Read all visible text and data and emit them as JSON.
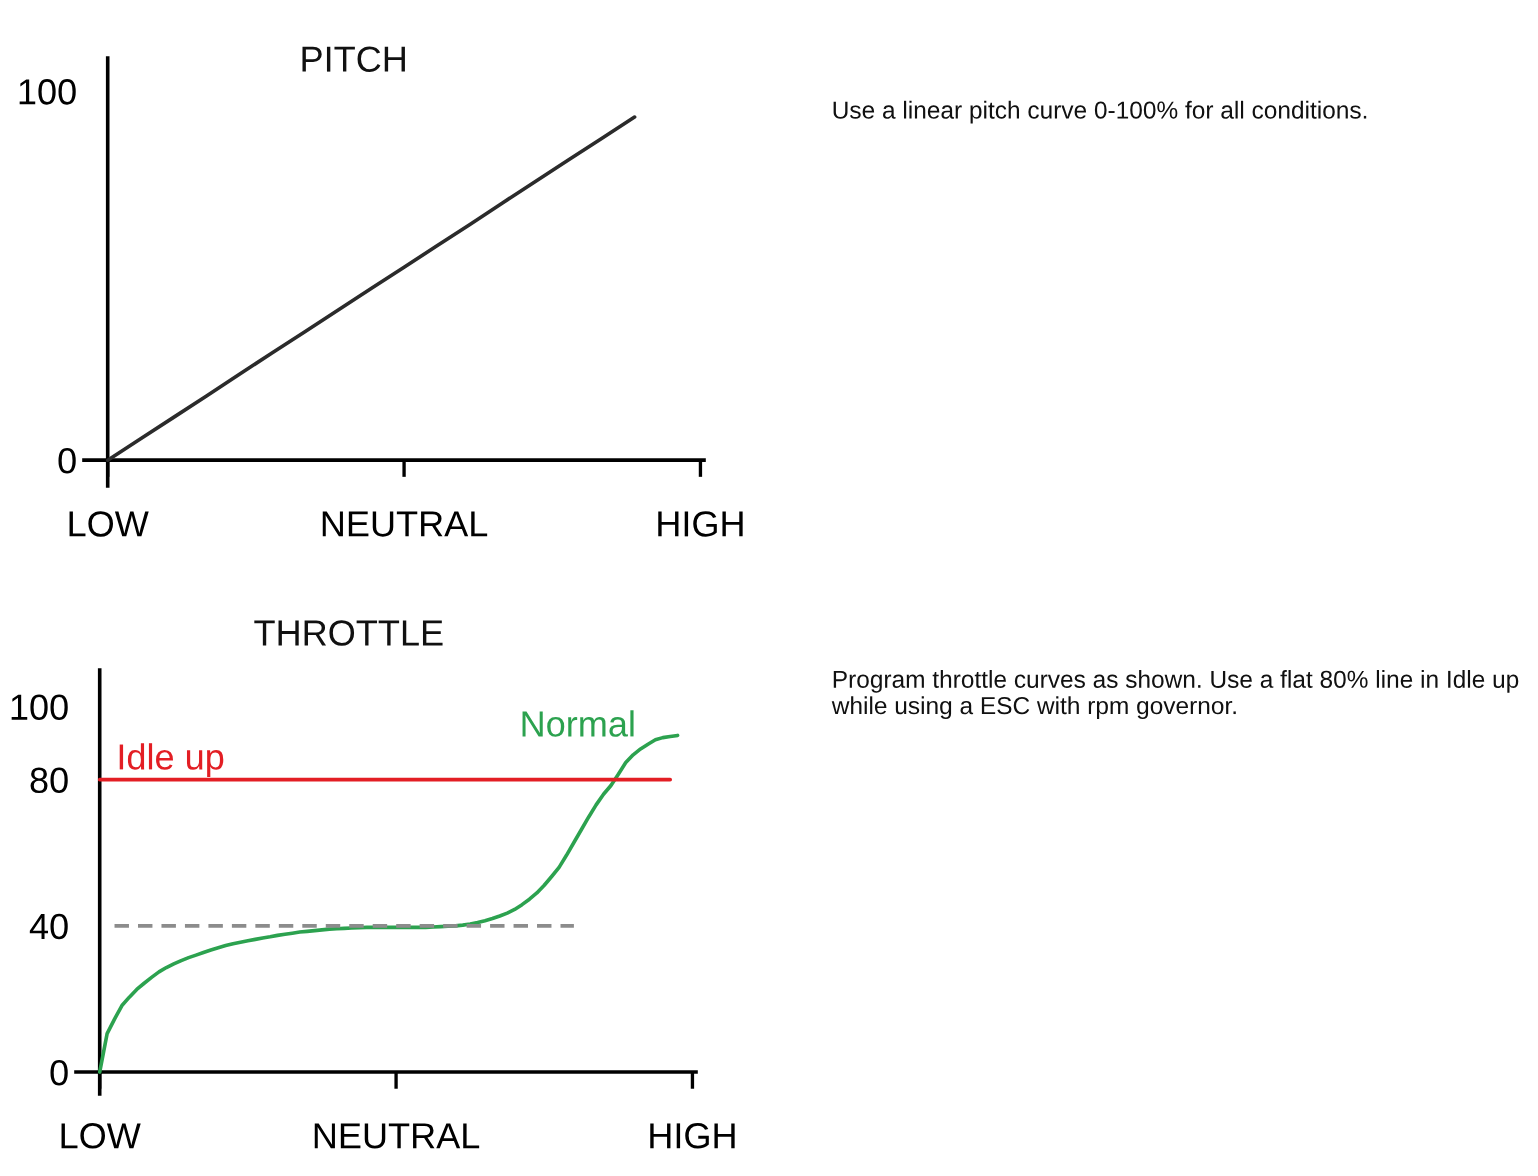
{
  "chart_data": [
    {
      "type": "line",
      "title": "PITCH",
      "categories": [
        "LOW",
        null,
        null,
        null,
        null,
        null,
        null,
        null,
        null,
        "NEUTRAL",
        null,
        null,
        null,
        null,
        null,
        null,
        null,
        null,
        "HIGH"
      ],
      "ylim": [
        -7,
        109
      ],
      "yticks": [
        0,
        100
      ],
      "series": [
        {
          "color": "#2b2b2b",
          "values": [
            0,
            5.8,
            11.6,
            17.4,
            23.3,
            29.1,
            34.9,
            40.7,
            46.5,
            52.3,
            58.1,
            63.9,
            69.8,
            75.6,
            81.4,
            87.2,
            93.0,
            null,
            null
          ]
        }
      ],
      "annotations": [
        "Use a linear pitch curve 0-100% for all conditions."
      ]
    },
    {
      "type": "line",
      "title": "THROTTLE",
      "categories": [
        "LOW",
        null,
        null,
        null,
        null,
        null,
        null,
        null,
        null,
        null,
        null,
        null,
        null,
        null,
        null,
        null,
        null,
        null,
        null,
        null,
        null,
        null,
        null,
        null,
        null,
        null,
        null,
        null,
        null,
        null,
        null,
        null,
        null,
        null,
        null,
        null,
        null,
        null,
        null,
        null,
        "NEUTRAL",
        null,
        null,
        null,
        null,
        null,
        null,
        null,
        null,
        null,
        null,
        null,
        null,
        null,
        null,
        null,
        null,
        null,
        null,
        null,
        null,
        null,
        null,
        null,
        null,
        null,
        null,
        null,
        null,
        null,
        null,
        null,
        null,
        null,
        null,
        null,
        null,
        null,
        null,
        null,
        "HIGH"
      ],
      "ylim": [
        -6,
        110
      ],
      "yticks": [
        0,
        40,
        80,
        100
      ],
      "series": [
        {
          "name": "Normal",
          "color": "#2ca24f",
          "values": [
            0,
            10.5,
            14.5,
            18.2,
            20.5,
            22.6,
            24.3,
            25.9,
            27.4,
            28.6,
            29.6,
            30.5,
            31.3,
            32.0,
            32.7,
            33.4,
            34.0,
            34.6,
            35.1,
            35.5,
            35.9,
            36.3,
            36.7,
            37.0,
            37.4,
            37.7,
            38.0,
            38.3,
            38.5,
            38.7,
            38.9,
            39.1,
            39.2,
            39.3,
            39.4,
            39.5,
            39.6,
            39.6,
            39.6,
            39.6,
            39.6,
            39.6,
            39.6,
            39.6,
            39.6,
            39.7,
            39.8,
            39.9,
            40.0,
            40.2,
            40.5,
            40.9,
            41.4,
            42.0,
            42.7,
            43.5,
            44.5,
            45.8,
            47.3,
            49.0,
            51.1,
            53.5,
            56.0,
            59.3,
            62.8,
            66.3,
            69.8,
            73.1,
            76.0,
            78.4,
            81.5,
            84.7,
            86.8,
            88.4,
            89.7,
            90.9,
            91.5,
            91.8,
            92.1,
            null,
            null
          ]
        },
        {
          "name": "Idle up",
          "color": "#e31e24",
          "values": [
            80,
            80,
            80,
            80,
            80,
            80,
            80,
            80,
            80,
            80,
            80,
            80,
            80,
            80,
            80,
            80,
            80,
            80,
            80,
            80,
            80,
            80,
            80,
            80,
            80,
            80,
            80,
            80,
            80,
            80,
            80,
            80,
            80,
            80,
            80,
            80,
            80,
            80,
            80,
            80,
            80,
            80,
            80,
            80,
            80,
            80,
            80,
            80,
            80,
            80,
            80,
            80,
            80,
            80,
            80,
            80,
            80,
            80,
            80,
            80,
            80,
            80,
            80,
            80,
            80,
            80,
            80,
            80,
            80,
            80,
            80,
            80,
            80,
            80,
            80,
            80,
            80,
            80,
            null,
            null,
            null
          ]
        },
        {
          "color": "#8c8c8c",
          "line_style": "dashed",
          "values": [
            null,
            null,
            40,
            40,
            40,
            40,
            40,
            40,
            40,
            40,
            40,
            40,
            40,
            40,
            40,
            40,
            40,
            40,
            40,
            40,
            40,
            40,
            40,
            40,
            40,
            40,
            40,
            40,
            40,
            40,
            40,
            40,
            40,
            40,
            40,
            40,
            40,
            40,
            40,
            40,
            40,
            40,
            40,
            40,
            40,
            40,
            40,
            40,
            40,
            40,
            40,
            40,
            40,
            40,
            40,
            40,
            40,
            40,
            40,
            40,
            40,
            40,
            40,
            40,
            40,
            null,
            null,
            null,
            null,
            null,
            null,
            null,
            null,
            null,
            null,
            null,
            null,
            null,
            null,
            null,
            null
          ]
        }
      ],
      "annotations": [
        "Program throttle curves as shown. Use a flat 80% line in Idle up while using a ESC with rpm governor."
      ]
    }
  ]
}
